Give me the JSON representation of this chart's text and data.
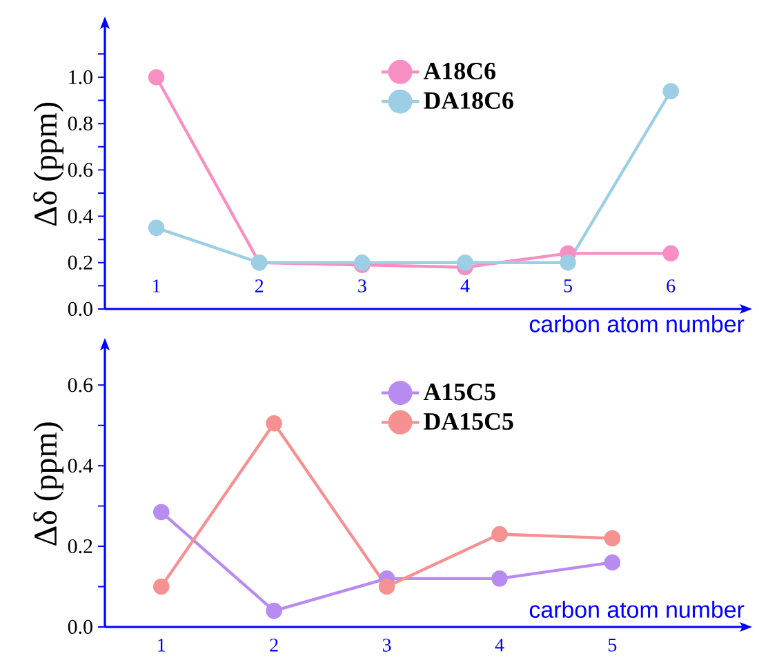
{
  "chart_data": [
    {
      "type": "line",
      "categories": [
        "1",
        "2",
        "3",
        "4",
        "5",
        "6"
      ],
      "xlabel": "carbon atom number",
      "ylabel": "Δδ (ppm)",
      "legend": "top",
      "marker": "circle",
      "line_style": "solid",
      "ylim": [
        0,
        1.25
      ],
      "yticks": [
        {
          "value": 0,
          "label": "0.0"
        },
        {
          "value": 0.1,
          "label": null
        },
        {
          "value": 0.2,
          "label": "0.2"
        },
        {
          "value": 0.3,
          "label": null
        },
        {
          "value": 0.4,
          "label": "0.4"
        },
        {
          "value": 0.5,
          "label": null
        },
        {
          "value": 0.6,
          "label": "0.6"
        },
        {
          "value": 0.7,
          "label": null
        },
        {
          "value": 0.8,
          "label": "0.8"
        },
        {
          "value": 0.9,
          "label": null
        },
        {
          "value": 1.0,
          "label": "1.0"
        },
        {
          "value": 1.1,
          "label": null
        }
      ],
      "series": [
        {
          "name": "A18C6",
          "color": "#f78fc2",
          "values": [
            1.0,
            0.2,
            0.19,
            0.18,
            0.24,
            0.24
          ]
        },
        {
          "name": "DA18C6",
          "color": "#9ccfe6",
          "values": [
            0.35,
            0.2,
            0.2,
            0.2,
            0.2,
            0.94
          ]
        }
      ]
    },
    {
      "type": "line",
      "categories": [
        "1",
        "2",
        "3",
        "4",
        "5"
      ],
      "xlabel": "carbon atom number",
      "ylabel": "Δδ (ppm)",
      "legend": "top",
      "marker": "circle",
      "line_style": "solid",
      "ylim": [
        0,
        0.71
      ],
      "yticks": [
        {
          "value": 0,
          "label": "0.0"
        },
        {
          "value": 0.1,
          "label": null
        },
        {
          "value": 0.2,
          "label": "0.2"
        },
        {
          "value": 0.3,
          "label": null
        },
        {
          "value": 0.4,
          "label": "0.4"
        },
        {
          "value": 0.5,
          "label": null
        },
        {
          "value": 0.6,
          "label": "0.6"
        }
      ],
      "series": [
        {
          "name": "A15C5",
          "color": "#b88bf0",
          "values": [
            0.285,
            0.04,
            0.12,
            0.12,
            0.16
          ]
        },
        {
          "name": "DA15C5",
          "color": "#f59191",
          "values": [
            0.1,
            0.505,
            0.1,
            0.23,
            0.22
          ]
        }
      ]
    }
  ]
}
